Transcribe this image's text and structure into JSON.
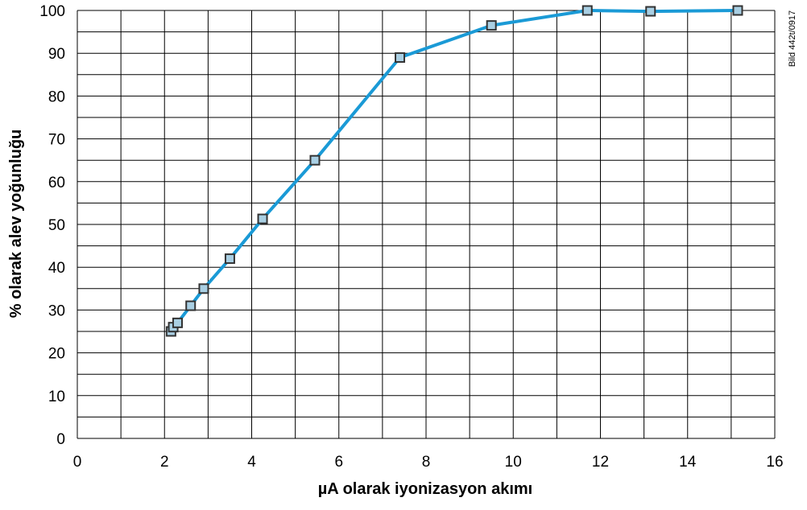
{
  "chart_data": {
    "type": "line",
    "title": "",
    "xlabel": "µA olarak iyonizasyon akımı",
    "ylabel": "% olarak alev yoğunluğu",
    "xlim": [
      0,
      16
    ],
    "ylim": [
      0,
      100
    ],
    "x_ticks": [
      0,
      2,
      4,
      6,
      8,
      10,
      12,
      14,
      16
    ],
    "y_ticks": [
      0,
      10,
      20,
      30,
      40,
      50,
      60,
      70,
      80,
      90,
      100
    ],
    "grid": true,
    "line_color": "#1a9ad6",
    "marker_fill": "#a9cfe3",
    "marker_stroke": "#333333",
    "series": [
      {
        "x": [
          2.15,
          2.2,
          2.3,
          2.6,
          2.9,
          3.5,
          4.25,
          5.45,
          7.4,
          9.5,
          11.7,
          13.15,
          15.15
        ],
        "y": [
          25,
          26,
          27,
          31,
          35,
          42,
          51.3,
          65,
          89,
          96.5,
          100,
          99.8,
          100
        ]
      }
    ],
    "side_note": "Bild 442t/0917"
  }
}
